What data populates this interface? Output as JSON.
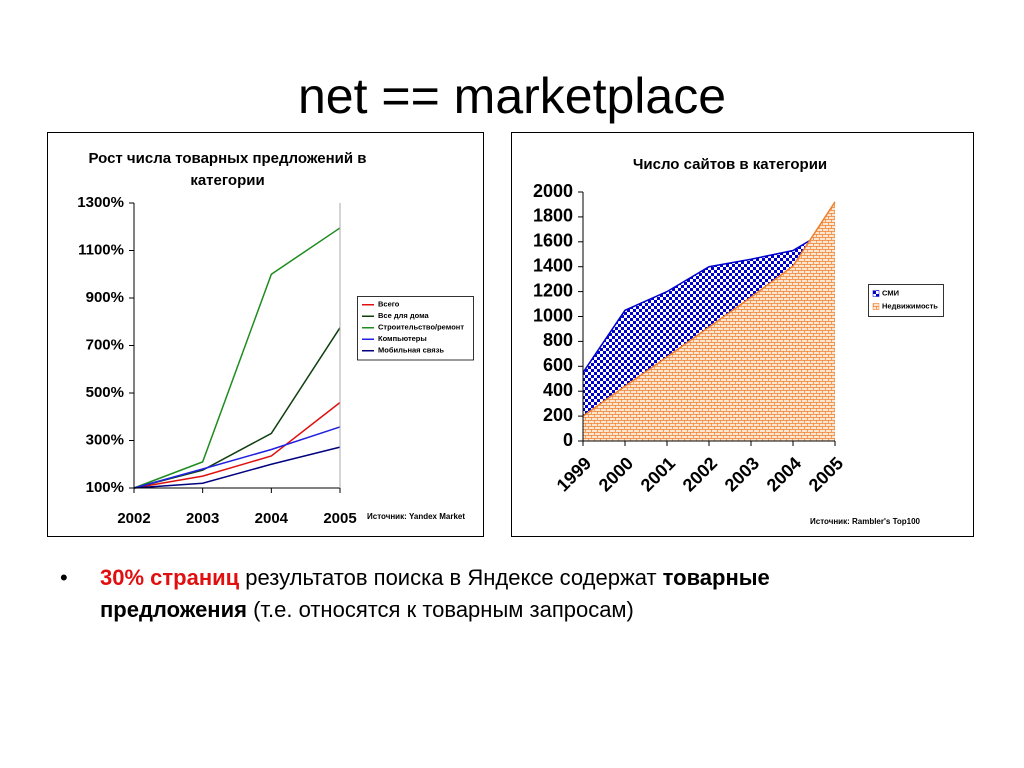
{
  "title": "net == marketplace",
  "chart_data": [
    {
      "type": "line",
      "title": "Рост числа товарных предложений в категории",
      "categories": [
        "2002",
        "2003",
        "2004",
        "2005"
      ],
      "ylim": [
        100,
        1300
      ],
      "yticks": [
        {
          "value": 100,
          "label": "100%"
        },
        {
          "value": 300,
          "label": "300%"
        },
        {
          "value": 500,
          "label": "500%"
        },
        {
          "value": 700,
          "label": "700%"
        },
        {
          "value": 900,
          "label": "900%"
        },
        {
          "value": 1100,
          "label": "1100%"
        },
        {
          "value": 1300,
          "label": "1300%"
        }
      ],
      "series": [
        {
          "name": "Всего",
          "color": "#e01010",
          "values": [
            100,
            150,
            235,
            460
          ]
        },
        {
          "name": "Все для дома",
          "color": "#0f3f0f",
          "values": [
            100,
            175,
            330,
            775
          ]
        },
        {
          "name": "Строительство/ремонт",
          "color": "#1e8c1e",
          "values": [
            100,
            210,
            1000,
            1195
          ]
        },
        {
          "name": "Компьютеры",
          "color": "#2020e0",
          "values": [
            100,
            180,
            262,
            357
          ]
        },
        {
          "name": "Мобильная связь",
          "color": "#000080",
          "values": [
            100,
            120,
            200,
            272
          ]
        }
      ],
      "legend": "right",
      "source": "Источник: Yandex Market"
    },
    {
      "type": "area",
      "title": "Число сайтов в категории",
      "categories": [
        "1999",
        "2000",
        "2001",
        "2002",
        "2003",
        "2004",
        "2005"
      ],
      "ylim": [
        0,
        2000
      ],
      "yticks": [
        0,
        200,
        400,
        600,
        800,
        1000,
        1200,
        1400,
        1600,
        1800,
        2000
      ],
      "series": [
        {
          "name": "СМИ",
          "color": "#0000cc",
          "values": [
            550,
            1050,
            1200,
            1400,
            1460,
            1530,
            1730
          ]
        },
        {
          "name": "Недвижимость",
          "color": "#f08030",
          "values": [
            200,
            440,
            675,
            915,
            1155,
            1405,
            1920
          ]
        }
      ],
      "legend": "right",
      "source": "Источник: Rambler's Top100"
    }
  ],
  "bullet": [
    {
      "text": "30% страниц",
      "style": "red-bold"
    },
    {
      "text": " результатов поиска в Яндексе содержат ",
      "style": "normal"
    },
    {
      "text": "товарные предложения",
      "style": "bold"
    },
    {
      "text": " (т.е. относятся к товарным запросам)",
      "style": "normal"
    }
  ]
}
